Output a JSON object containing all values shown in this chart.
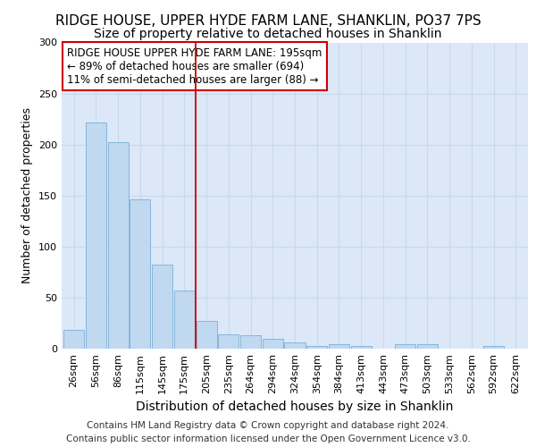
{
  "title1": "RIDGE HOUSE, UPPER HYDE FARM LANE, SHANKLIN, PO37 7PS",
  "title2": "Size of property relative to detached houses in Shanklin",
  "xlabel": "Distribution of detached houses by size in Shanklin",
  "ylabel": "Number of detached properties",
  "categories": [
    "26sqm",
    "56sqm",
    "86sqm",
    "115sqm",
    "145sqm",
    "175sqm",
    "205sqm",
    "235sqm",
    "264sqm",
    "294sqm",
    "324sqm",
    "354sqm",
    "384sqm",
    "413sqm",
    "443sqm",
    "473sqm",
    "503sqm",
    "533sqm",
    "562sqm",
    "592sqm",
    "622sqm"
  ],
  "values": [
    18,
    222,
    202,
    146,
    82,
    57,
    27,
    14,
    13,
    10,
    6,
    3,
    4,
    3,
    0,
    4,
    4,
    0,
    0,
    3,
    0
  ],
  "bar_color": "#c0d8f0",
  "bar_edge_color": "#7ab0d8",
  "bar_edge_width": 0.6,
  "vline_color": "#cc0000",
  "vline_pos": 5.5,
  "annotation_text": "RIDGE HOUSE UPPER HYDE FARM LANE: 195sqm\n← 89% of detached houses are smaller (694)\n11% of semi-detached houses are larger (88) →",
  "annot_box_edgecolor": "#cc0000",
  "ylim": [
    0,
    300
  ],
  "yticks": [
    0,
    50,
    100,
    150,
    200,
    250,
    300
  ],
  "grid_color": "#c8d8ec",
  "bg_color": "#dce8f8",
  "footer_line1": "Contains HM Land Registry data © Crown copyright and database right 2024.",
  "footer_line2": "Contains public sector information licensed under the Open Government Licence v3.0.",
  "title1_fontsize": 11,
  "title2_fontsize": 10,
  "xlabel_fontsize": 10,
  "ylabel_fontsize": 9,
  "tick_fontsize": 8,
  "annot_fontsize": 8.5,
  "footer_fontsize": 7.5
}
